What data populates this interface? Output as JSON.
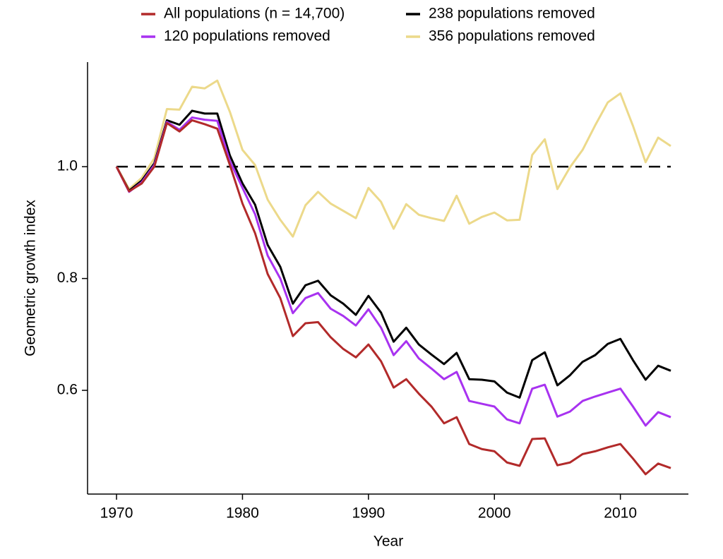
{
  "chart_data": {
    "type": "line",
    "xlabel": "Year",
    "ylabel": "Geometric growth index",
    "x": [
      1970,
      1971,
      1972,
      1973,
      1974,
      1975,
      1976,
      1977,
      1978,
      1979,
      1980,
      1981,
      1982,
      1983,
      1984,
      1985,
      1986,
      1987,
      1988,
      1989,
      1990,
      1991,
      1992,
      1993,
      1994,
      1995,
      1996,
      1997,
      1998,
      1999,
      2000,
      2001,
      2002,
      2003,
      2004,
      2005,
      2006,
      2007,
      2008,
      2009,
      2010,
      2011,
      2012,
      2013,
      2014
    ],
    "series": [
      {
        "name": "All populations (n = 14,700)",
        "color": "#b22a2a",
        "values": [
          1.0,
          0.956,
          0.97,
          1.0,
          1.078,
          1.063,
          1.083,
          1.076,
          1.068,
          1.003,
          0.934,
          0.881,
          0.808,
          0.765,
          0.697,
          0.72,
          0.722,
          0.695,
          0.674,
          0.659,
          0.682,
          0.652,
          0.605,
          0.62,
          0.594,
          0.571,
          0.541,
          0.552,
          0.504,
          0.495,
          0.491,
          0.471,
          0.465,
          0.513,
          0.514,
          0.466,
          0.471,
          0.486,
          0.491,
          0.498,
          0.504,
          0.478,
          0.45,
          0.469,
          0.461
        ]
      },
      {
        "name": "120 populations removed",
        "color": "#a832f0",
        "values": [
          1.0,
          0.955,
          0.972,
          1.003,
          1.08,
          1.066,
          1.088,
          1.084,
          1.082,
          1.01,
          0.962,
          0.915,
          0.841,
          0.8,
          0.738,
          0.765,
          0.774,
          0.746,
          0.733,
          0.716,
          0.745,
          0.712,
          0.663,
          0.688,
          0.657,
          0.639,
          0.62,
          0.633,
          0.581,
          0.576,
          0.571,
          0.548,
          0.541,
          0.603,
          0.61,
          0.553,
          0.562,
          0.581,
          0.589,
          0.596,
          0.603,
          0.571,
          0.537,
          0.561,
          0.552
        ]
      },
      {
        "name": "238 populations removed",
        "color": "#000000",
        "values": [
          1.0,
          0.957,
          0.975,
          1.006,
          1.083,
          1.075,
          1.1,
          1.095,
          1.095,
          1.02,
          0.97,
          0.932,
          0.86,
          0.821,
          0.755,
          0.788,
          0.796,
          0.77,
          0.755,
          0.735,
          0.769,
          0.739,
          0.687,
          0.712,
          0.682,
          0.664,
          0.647,
          0.667,
          0.62,
          0.619,
          0.616,
          0.596,
          0.587,
          0.654,
          0.668,
          0.609,
          0.627,
          0.651,
          0.663,
          0.683,
          0.692,
          0.654,
          0.619,
          0.644,
          0.635
        ]
      },
      {
        "name": "356 populations removed",
        "color": "#ecd98a",
        "values": [
          1.0,
          0.96,
          0.98,
          1.015,
          1.103,
          1.102,
          1.143,
          1.14,
          1.154,
          1.098,
          1.03,
          1.003,
          0.941,
          0.905,
          0.875,
          0.931,
          0.955,
          0.934,
          0.921,
          0.908,
          0.962,
          0.937,
          0.889,
          0.933,
          0.914,
          0.908,
          0.903,
          0.948,
          0.898,
          0.91,
          0.918,
          0.904,
          0.905,
          1.021,
          1.049,
          0.96,
          0.999,
          1.03,
          1.074,
          1.115,
          1.131,
          1.073,
          1.008,
          1.052,
          1.037
        ]
      }
    ],
    "xlim": [
      1967.7,
      2015.4
    ],
    "xticks": [
      1970,
      1980,
      1990,
      2000,
      2010
    ],
    "ylim": [
      0.4145,
      1.187
    ],
    "yticks": [
      0.6,
      0.8,
      {
        "value": 1,
        "label": "1.0"
      }
    ],
    "hline": 1,
    "legend": "top"
  }
}
